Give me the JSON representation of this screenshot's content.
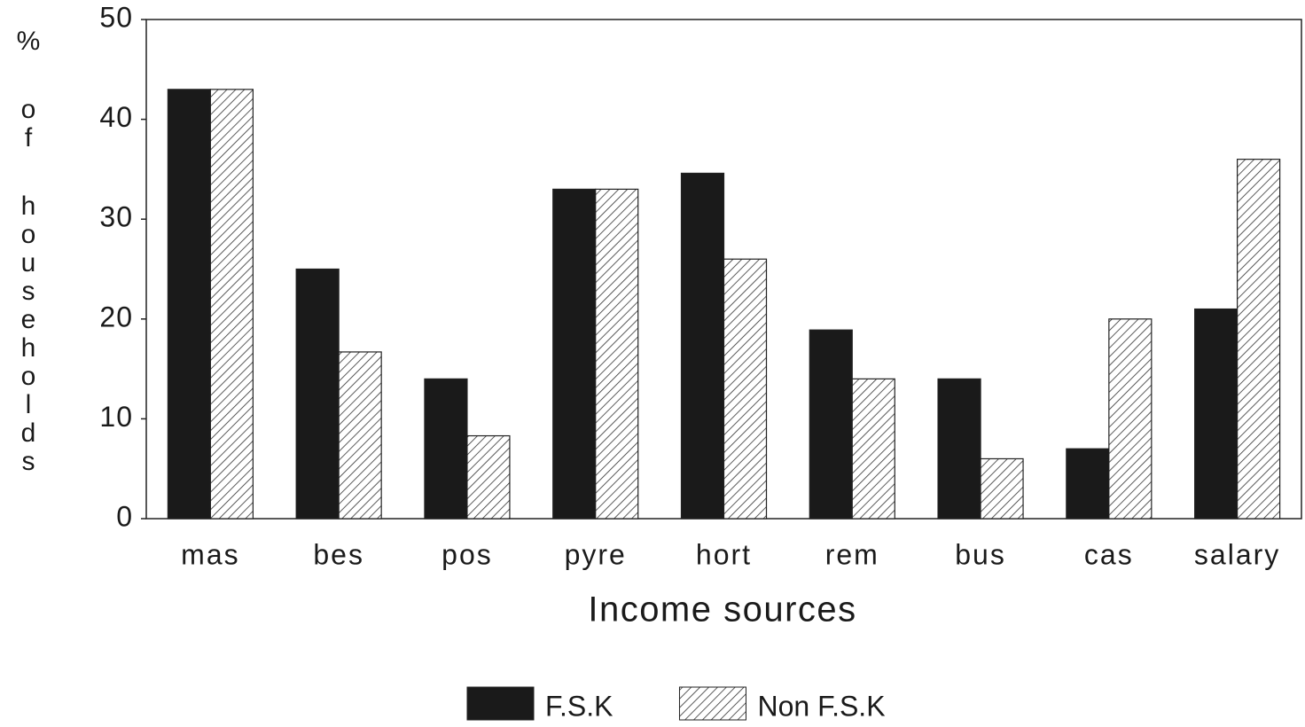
{
  "chart_data": {
    "type": "bar",
    "x_label": "Income sources",
    "y_label": "% of households",
    "categories": [
      "mas",
      "bes",
      "pos",
      "pyre",
      "hort",
      "rem",
      "bus",
      "cas",
      "salary"
    ],
    "series": [
      {
        "name": "F.S.K",
        "color": "#1a1a1a",
        "values": [
          43,
          25,
          14,
          33,
          34.6,
          18.9,
          14,
          7,
          21
        ]
      },
      {
        "name": "Non F.S.K",
        "color": "#ffffff",
        "pattern": "hatch",
        "values": [
          43,
          16.7,
          8.3,
          33,
          26,
          14,
          6,
          20,
          36
        ]
      }
    ],
    "ylim": [
      0,
      50
    ],
    "yticks": [
      0,
      10,
      20,
      30,
      40,
      50
    ],
    "grid": false,
    "legend": "bottom"
  }
}
